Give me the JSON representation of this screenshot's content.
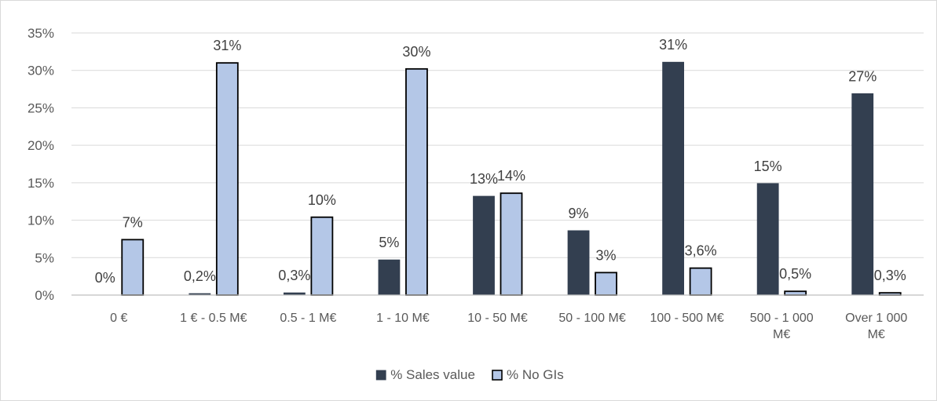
{
  "chart_data": {
    "type": "bar",
    "title": "",
    "xlabel": "",
    "ylabel": "",
    "ylim": [
      0,
      35
    ],
    "y_ticks": [
      "0%",
      "5%",
      "10%",
      "15%",
      "20%",
      "25%",
      "30%",
      "35%"
    ],
    "y_tick_values": [
      0,
      5,
      10,
      15,
      20,
      25,
      30,
      35
    ],
    "grid": "horizontal",
    "legend_position": "bottom",
    "categories": [
      [
        "0 €"
      ],
      [
        "1 € - 0.5 M€"
      ],
      [
        "0.5 - 1 M€"
      ],
      [
        "1 - 10 M€"
      ],
      [
        "10 - 50 M€"
      ],
      [
        "50 - 100 M€"
      ],
      [
        "100 - 500 M€"
      ],
      [
        "500 - 1 000",
        "M€"
      ],
      [
        "Over 1 000",
        "M€"
      ]
    ],
    "series": [
      {
        "name": "% Sales value",
        "color": "#333f50",
        "stroke": "#333f50",
        "values": [
          0,
          0.2,
          0.3,
          4.7,
          13.2,
          8.6,
          31.1,
          14.9,
          26.9
        ],
        "labels": [
          "0%",
          "0,2%",
          "0,3%",
          "5%",
          "13%",
          "9%",
          "31%",
          "15%",
          "27%"
        ]
      },
      {
        "name": "% No GIs",
        "color": "#b4c7e7",
        "stroke": "#000000",
        "values": [
          7.4,
          31.0,
          10.4,
          30.2,
          13.6,
          3.0,
          3.6,
          0.5,
          0.3
        ],
        "labels": [
          "7%",
          "31%",
          "10%",
          "30%",
          "14%",
          "3%",
          "3,6%",
          "0,5%",
          "0,3%"
        ]
      }
    ],
    "colors": {
      "grid": "#d9d9d9",
      "axis": "#bfbfbf"
    }
  }
}
